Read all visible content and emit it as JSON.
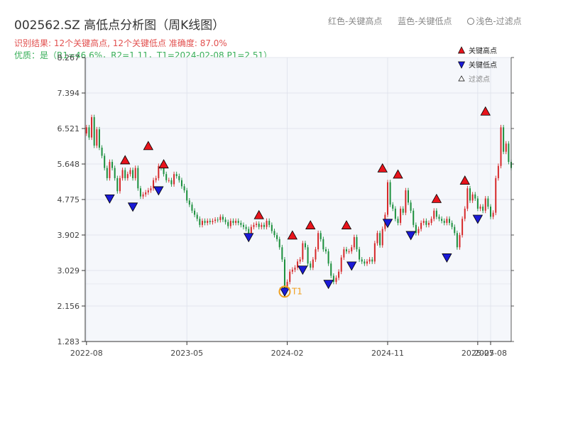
{
  "header": {
    "title": "002562.SZ 高低点分析图（周K线图）",
    "legend_top": {
      "red": "红色-关键高点",
      "blue": "蓝色-关键低点",
      "light": "浅色-过滤点"
    },
    "result_line": "识别结果: 12个关键高点, 12个关键低点   准确度: 87.0%",
    "quality_line": "优质：是（R1=46.6%，R2=1.11，T1=2024-02-08 P1=2.51）"
  },
  "chart_data": {
    "type": "candlestick",
    "y_ticks": [
      "1.283",
      "2.156",
      "3.029",
      "3.902",
      "4.775",
      "5.648",
      "6.521",
      "7.394",
      "8.267"
    ],
    "ylim": [
      1.283,
      8.267
    ],
    "x_ticks": [
      {
        "label": "2022-08",
        "pos": 0
      },
      {
        "label": "2023-05",
        "pos": 39
      },
      {
        "label": "2024-02",
        "pos": 78
      },
      {
        "label": "2024-11",
        "pos": 117
      },
      {
        "label": "2025-07",
        "pos": 152
      },
      {
        "label": "2025-08",
        "pos": 157
      }
    ],
    "colors": {
      "up": "#d62728",
      "down": "#1a8f3c",
      "high_marker": "#e8141c",
      "low_marker": "#1a1ad6",
      "t1": "#f0a020"
    },
    "legend": {
      "high": "关键高点",
      "low": "关键低点",
      "filtered": "过滤点"
    },
    "annotation": "T1",
    "t1_index": 77,
    "closes": [
      6.55,
      6.3,
      6.8,
      6.1,
      6.5,
      6.05,
      5.85,
      5.55,
      5.3,
      5.7,
      5.55,
      5.3,
      4.98,
      5.3,
      5.5,
      5.3,
      5.4,
      5.5,
      5.3,
      5.55,
      5.05,
      4.85,
      4.9,
      4.95,
      5.0,
      5.05,
      5.25,
      5.3,
      5.6,
      5.55,
      5.4,
      5.25,
      5.25,
      5.15,
      5.4,
      5.35,
      5.25,
      5.1,
      5.0,
      4.75,
      4.65,
      4.5,
      4.4,
      4.3,
      4.15,
      4.25,
      4.2,
      4.25,
      4.22,
      4.25,
      4.28,
      4.27,
      4.35,
      4.28,
      4.22,
      4.12,
      4.25,
      4.2,
      4.25,
      4.2,
      4.15,
      4.1,
      4.05,
      3.95,
      4.1,
      4.15,
      4.18,
      4.1,
      4.15,
      4.1,
      4.25,
      4.15,
      4.0,
      3.9,
      3.8,
      3.6,
      3.3,
      2.6,
      2.75,
      3.0,
      3.05,
      3.1,
      3.25,
      3.3,
      3.7,
      3.6,
      3.2,
      3.1,
      3.3,
      3.55,
      3.95,
      3.8,
      3.55,
      3.5,
      3.2,
      2.9,
      2.75,
      2.85,
      3.0,
      3.35,
      3.55,
      3.5,
      3.5,
      3.6,
      3.85,
      3.55,
      3.3,
      3.25,
      3.2,
      3.25,
      3.3,
      3.25,
      3.7,
      3.95,
      3.65,
      4.05,
      4.4,
      5.2,
      4.65,
      4.55,
      4.3,
      4.2,
      4.55,
      4.45,
      5.0,
      4.7,
      4.5,
      4.15,
      3.95,
      4.05,
      4.2,
      4.25,
      4.15,
      4.2,
      4.3,
      4.5,
      4.35,
      4.3,
      4.25,
      4.2,
      4.3,
      4.2,
      4.1,
      3.95,
      3.6,
      3.9,
      4.3,
      4.55,
      5.05,
      4.75,
      4.9,
      4.8,
      4.55,
      4.6,
      4.5,
      4.8,
      4.6,
      4.35,
      4.45,
      5.3,
      5.6,
      6.55,
      5.95,
      6.15,
      5.7,
      5.55
    ],
    "key_highs": [
      {
        "i": 15,
        "v": 5.6
      },
      {
        "i": 24,
        "v": 5.95
      },
      {
        "i": 30,
        "v": 5.5
      },
      {
        "i": 67,
        "v": 4.25
      },
      {
        "i": 80,
        "v": 3.75
      },
      {
        "i": 87,
        "v": 4.0
      },
      {
        "i": 101,
        "v": 4.0
      },
      {
        "i": 115,
        "v": 5.4
      },
      {
        "i": 121,
        "v": 5.25
      },
      {
        "i": 136,
        "v": 4.65
      },
      {
        "i": 147,
        "v": 5.1
      },
      {
        "i": 155,
        "v": 6.8
      }
    ],
    "key_lows": [
      {
        "i": 9,
        "v": 4.8
      },
      {
        "i": 18,
        "v": 4.6
      },
      {
        "i": 28,
        "v": 5.0
      },
      {
        "i": 63,
        "v": 3.85
      },
      {
        "i": 77,
        "v": 2.51
      },
      {
        "i": 84,
        "v": 3.05
      },
      {
        "i": 94,
        "v": 2.7
      },
      {
        "i": 103,
        "v": 3.15
      },
      {
        "i": 117,
        "v": 4.2
      },
      {
        "i": 126,
        "v": 3.9
      },
      {
        "i": 140,
        "v": 3.35
      },
      {
        "i": 152,
        "v": 4.3
      }
    ]
  }
}
